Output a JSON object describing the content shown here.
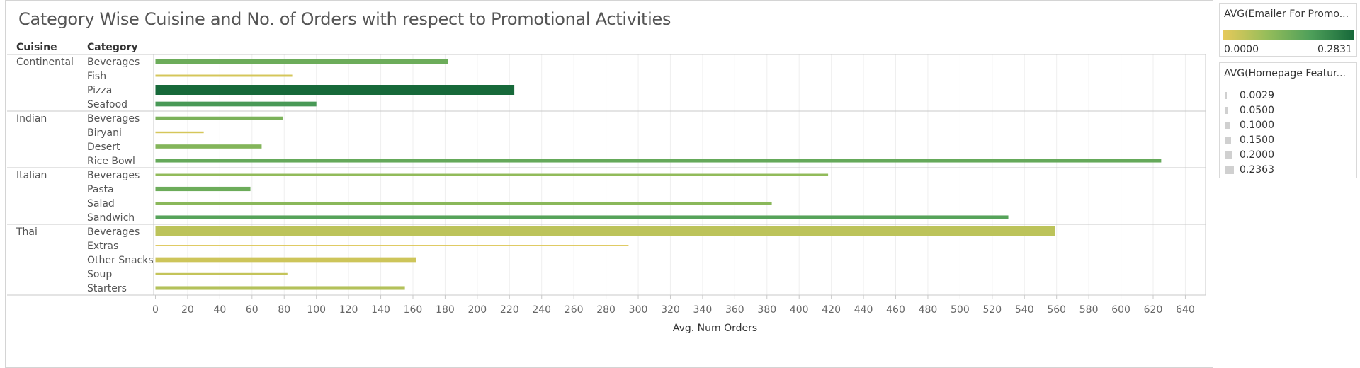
{
  "chart_data": {
    "type": "bar",
    "orientation": "horizontal",
    "title": "Category Wise Cuisine and No. of Orders with respect to Promotional Activities",
    "row_headers": [
      "Cuisine",
      "Category"
    ],
    "xlabel": "Avg. Num Orders",
    "xlim": [
      0,
      650
    ],
    "xticks": [
      0,
      20,
      40,
      60,
      80,
      100,
      120,
      140,
      160,
      180,
      200,
      220,
      240,
      260,
      280,
      300,
      320,
      340,
      360,
      380,
      400,
      420,
      440,
      460,
      480,
      500,
      520,
      540,
      560,
      580,
      600,
      620,
      640
    ],
    "grid": true,
    "groups": [
      {
        "cuisine": "Continental",
        "rows": [
          {
            "category": "Beverages",
            "value": 182,
            "emailer": 0.15,
            "homepage": 0.1
          },
          {
            "category": "Fish",
            "value": 85,
            "emailer": 0.02,
            "homepage": 0.03
          },
          {
            "category": "Pizza",
            "value": 223,
            "emailer": 0.2831,
            "homepage": 0.2363
          },
          {
            "category": "Seafood",
            "value": 100,
            "emailer": 0.2,
            "homepage": 0.1
          }
        ]
      },
      {
        "cuisine": "Indian",
        "rows": [
          {
            "category": "Beverages",
            "value": 79,
            "emailer": 0.13,
            "homepage": 0.06
          },
          {
            "category": "Biryani",
            "value": 30,
            "emailer": 0.02,
            "homepage": 0.02
          },
          {
            "category": "Desert",
            "value": 66,
            "emailer": 0.12,
            "homepage": 0.08
          },
          {
            "category": "Rice Bowl",
            "value": 625,
            "emailer": 0.16,
            "homepage": 0.07
          }
        ]
      },
      {
        "cuisine": "Italian",
        "rows": [
          {
            "category": "Beverages",
            "value": 418,
            "emailer": 0.1,
            "homepage": 0.03
          },
          {
            "category": "Pasta",
            "value": 59,
            "emailer": 0.15,
            "homepage": 0.09
          },
          {
            "category": "Salad",
            "value": 383,
            "emailer": 0.11,
            "homepage": 0.05
          },
          {
            "category": "Sandwich",
            "value": 530,
            "emailer": 0.18,
            "homepage": 0.07
          }
        ]
      },
      {
        "cuisine": "Thai",
        "rows": [
          {
            "category": "Beverages",
            "value": 559,
            "emailer": 0.05,
            "homepage": 0.2363
          },
          {
            "category": "Extras",
            "value": 294,
            "emailer": 0.01,
            "homepage": 0.01
          },
          {
            "category": "Other Snacks",
            "value": 162,
            "emailer": 0.03,
            "homepage": 0.1
          },
          {
            "category": "Soup",
            "value": 82,
            "emailer": 0.04,
            "homepage": 0.02
          },
          {
            "category": "Starters",
            "value": 155,
            "emailer": 0.06,
            "homepage": 0.07
          }
        ]
      }
    ]
  },
  "legends": {
    "color": {
      "title": "AVG(Emailer For Promo...",
      "min_label": "0.0000",
      "max_label": "0.2831",
      "min": 0.0,
      "max": 0.2831,
      "ramp_colors": [
        "#e6c95a",
        "#96bd5a",
        "#4fa05a",
        "#17693a"
      ]
    },
    "size": {
      "title": "AVG(Homepage Featur...",
      "items": [
        {
          "label": "0.0029",
          "value": 0.0029
        },
        {
          "label": "0.0500",
          "value": 0.05
        },
        {
          "label": "0.1000",
          "value": 0.1
        },
        {
          "label": "0.1500",
          "value": 0.15
        },
        {
          "label": "0.2000",
          "value": 0.2
        },
        {
          "label": "0.2363",
          "value": 0.2363
        }
      ]
    }
  }
}
